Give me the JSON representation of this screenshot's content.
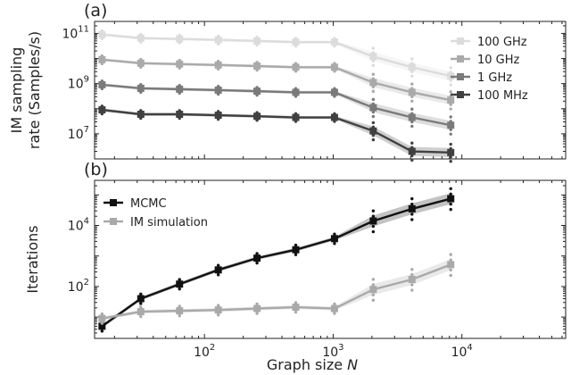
{
  "chart_data": [
    {
      "panel": "(a)",
      "type": "line",
      "ylabel_line1": "IM sampling",
      "ylabel_line2": "rate (Samples/s)",
      "xscale": "log",
      "yscale": "log",
      "xlim": [
        14,
        64000
      ],
      "ylim": [
        1000000.0,
        300000000000.0
      ],
      "legend_loc": "upper right",
      "y_ticks": [
        {
          "value": 10000000.0,
          "base": "10",
          "exp": "7"
        },
        {
          "value": 1000000000.0,
          "base": "10",
          "exp": "9"
        },
        {
          "value": 100000000000.0,
          "base": "10",
          "exp": "11"
        }
      ],
      "x": [
        16,
        32,
        64,
        128,
        256,
        512,
        1024,
        2048,
        4096,
        8192
      ],
      "series": [
        {
          "name": "100 GHz",
          "color": "#dcdcdc",
          "values": [
            90000000000.0,
            65000000000.0,
            60000000000.0,
            55000000000.0,
            50000000000.0,
            45000000000.0,
            45000000000.0,
            12000000000.0,
            4500000000.0,
            2000000000.0
          ]
        },
        {
          "name": "10 GHz",
          "color": "#aaaaaa",
          "values": [
            9000000000.0,
            6500000000.0,
            6000000000.0,
            5500000000.0,
            5000000000.0,
            4500000000.0,
            4500000000.0,
            1100000000.0,
            450000000.0,
            220000000.0
          ]
        },
        {
          "name": "1 GHz",
          "color": "#7a7a7a",
          "values": [
            900000000.0,
            650000000.0,
            600000000.0,
            550000000.0,
            500000000.0,
            450000000.0,
            450000000.0,
            110000000.0,
            45000000.0,
            22000000.0
          ]
        },
        {
          "name": "100 MHz",
          "color": "#404040",
          "values": [
            90000000.0,
            60000000.0,
            60000000.0,
            55000000.0,
            50000000.0,
            45000000.0,
            45000000.0,
            13000000.0,
            2000000.0,
            1800000.0
          ]
        }
      ]
    },
    {
      "panel": "(b)",
      "type": "line",
      "ylabel": "Iterations",
      "xlabel_prefix": "Graph size ",
      "xlabel_var": "N",
      "xscale": "log",
      "yscale": "log",
      "xlim": [
        14,
        64000
      ],
      "ylim": [
        2,
        300000
      ],
      "legend_loc": "upper left",
      "x_ticks": [
        {
          "value": 100,
          "base": "10",
          "exp": "2"
        },
        {
          "value": 1000,
          "base": "10",
          "exp": "3"
        },
        {
          "value": 10000,
          "base": "10",
          "exp": "4"
        }
      ],
      "y_ticks": [
        {
          "value": 100,
          "base": "10",
          "exp": "2"
        },
        {
          "value": 10000,
          "base": "10",
          "exp": "4"
        }
      ],
      "x": [
        16,
        32,
        64,
        128,
        256,
        512,
        1024,
        2048,
        4096,
        8192
      ],
      "series": [
        {
          "name": "MCMC",
          "color": "#111111",
          "values": [
            5,
            40,
            120,
            350,
            850,
            1600,
            3700,
            14000,
            35000,
            75000
          ]
        },
        {
          "name": "IM simulation",
          "color": "#a9a9a9",
          "values": [
            9,
            15,
            16,
            17,
            19,
            21,
            19,
            80,
            170,
            520
          ]
        }
      ]
    }
  ]
}
